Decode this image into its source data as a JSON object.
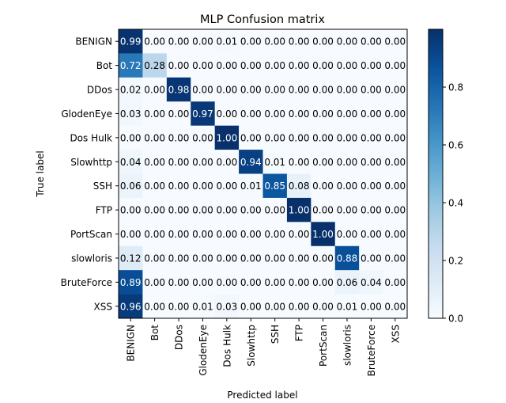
{
  "chart_data": {
    "type": "heatmap",
    "title": "MLP Confusion matrix",
    "xlabel": "Predicted label",
    "ylabel": "True label",
    "row_labels": [
      "BENIGN",
      "Bot",
      "DDos",
      "GlodenEye",
      "Dos Hulk",
      "Slowhttp",
      "SSH",
      "FTP",
      "PortScan",
      "slowloris",
      "BruteForce",
      "XSS"
    ],
    "col_labels": [
      "BENIGN",
      "Bot",
      "DDos",
      "GlodenEye",
      "Dos Hulk",
      "Slowhttp",
      "SSH",
      "FTP",
      "PortScan",
      "slowloris",
      "BruteForce",
      "XSS"
    ],
    "values": [
      [
        0.99,
        0.0,
        0.0,
        0.0,
        0.01,
        0.0,
        0.0,
        0.0,
        0.0,
        0.0,
        0.0,
        0.0
      ],
      [
        0.72,
        0.28,
        0.0,
        0.0,
        0.0,
        0.0,
        0.0,
        0.0,
        0.0,
        0.0,
        0.0,
        0.0
      ],
      [
        0.02,
        0.0,
        0.98,
        0.0,
        0.0,
        0.0,
        0.0,
        0.0,
        0.0,
        0.0,
        0.0,
        0.0
      ],
      [
        0.03,
        0.0,
        0.0,
        0.97,
        0.0,
        0.0,
        0.0,
        0.0,
        0.0,
        0.0,
        0.0,
        0.0
      ],
      [
        0.0,
        0.0,
        0.0,
        0.0,
        1.0,
        0.0,
        0.0,
        0.0,
        0.0,
        0.0,
        0.0,
        0.0
      ],
      [
        0.04,
        0.0,
        0.0,
        0.0,
        0.0,
        0.94,
        0.01,
        0.0,
        0.0,
        0.0,
        0.0,
        0.0
      ],
      [
        0.06,
        0.0,
        0.0,
        0.0,
        0.0,
        0.01,
        0.85,
        0.08,
        0.0,
        0.0,
        0.0,
        0.0
      ],
      [
        0.0,
        0.0,
        0.0,
        0.0,
        0.0,
        0.0,
        0.0,
        1.0,
        0.0,
        0.0,
        0.0,
        0.0
      ],
      [
        0.0,
        0.0,
        0.0,
        0.0,
        0.0,
        0.0,
        0.0,
        0.0,
        1.0,
        0.0,
        0.0,
        0.0
      ],
      [
        0.12,
        0.0,
        0.0,
        0.0,
        0.0,
        0.0,
        0.0,
        0.0,
        0.0,
        0.88,
        0.0,
        0.0
      ],
      [
        0.89,
        0.0,
        0.0,
        0.0,
        0.0,
        0.0,
        0.0,
        0.0,
        0.0,
        0.06,
        0.04,
        0.0
      ],
      [
        0.96,
        0.0,
        0.0,
        0.01,
        0.03,
        0.0,
        0.0,
        0.0,
        0.0,
        0.01,
        0.0,
        0.0
      ]
    ],
    "value_range": [
      0,
      1
    ],
    "colormap": "Blues",
    "colorbar_ticks": [
      "0.0",
      "0.2",
      "0.4",
      "0.6",
      "0.8"
    ],
    "colorbar_tick_values": [
      0.0,
      0.2,
      0.4,
      0.6,
      0.8
    ],
    "text_colors": {
      "dark_cell": "#ffffff",
      "light_cell": "#000000"
    },
    "grid": false
  }
}
